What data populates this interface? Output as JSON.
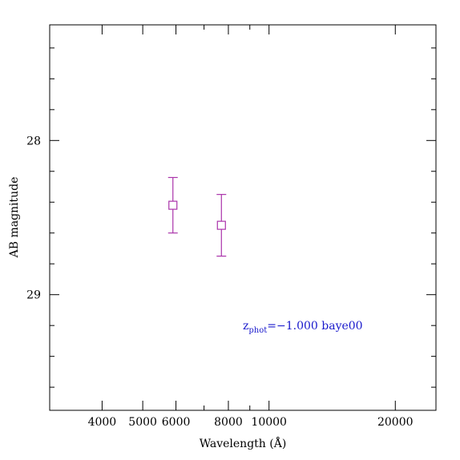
{
  "chart_data": {
    "type": "scatter",
    "xlabel": "Wavelength (Å)",
    "ylabel": "AB magnitude",
    "x_scale": "log",
    "xlim": [
      3000,
      25000
    ],
    "ylim": [
      29.75,
      27.25
    ],
    "x_ticks_labeled": [
      "4000",
      "5000",
      "6000",
      "8000",
      "10000",
      "20000"
    ],
    "y_ticks_labeled": [
      "28",
      "29"
    ],
    "colors": {
      "points": "#aa33aa",
      "annotation": "#1a1acc",
      "axes": "#000000"
    },
    "series": [
      {
        "marker": "open-square",
        "points": [
          {
            "x": 5900,
            "y": 28.42,
            "err_low": 28.24,
            "err_high": 28.6
          },
          {
            "x": 7700,
            "y": 28.55,
            "err_low": 28.35,
            "err_high": 28.75
          }
        ]
      }
    ],
    "annotation": {
      "z_main": "z",
      "z_sub": "phot",
      "text": "=−1.000 baye00"
    }
  }
}
